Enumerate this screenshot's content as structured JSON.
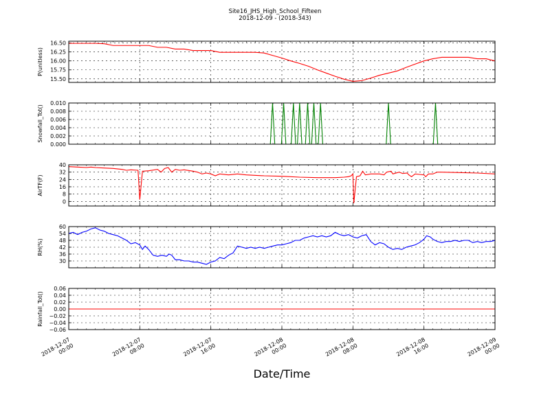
{
  "figure": {
    "title_line1": "Site16_JHS_High_School_Fifteen",
    "title_line2": "2018-12-09 - (2018-343)",
    "xlabel": "Date/Time"
  },
  "chart_data": {
    "type": "line",
    "x_axis": {
      "range": [
        "2018-12-07 00:00",
        "2018-12-09 00:00"
      ],
      "ticks": [
        {
          "line1": "2018-12-07",
          "line2": "00:00"
        },
        {
          "line1": "2018-12-07",
          "line2": "08:00"
        },
        {
          "line1": "2018-12-07",
          "line2": "16:00"
        },
        {
          "line1": "2018-12-08",
          "line2": "00:00"
        },
        {
          "line1": "2018-12-08",
          "line2": "08:00"
        },
        {
          "line1": "2018-12-08",
          "line2": "16:00"
        },
        {
          "line1": "2018-12-09",
          "line2": "00:00"
        }
      ]
    },
    "grid": true,
    "panels": [
      {
        "ylabel": "P(unitless)",
        "ylim": [
          15.4,
          16.55
        ],
        "yticks": [
          "16.50",
          "16.25",
          "16.00",
          "15.75",
          "15.50"
        ],
        "ytick_values": [
          16.5,
          16.25,
          16.0,
          15.75,
          15.5
        ],
        "color": "#ff0000",
        "points": [
          [
            0,
            16.49
          ],
          [
            1,
            16.49
          ],
          [
            2,
            16.49
          ],
          [
            3,
            16.49
          ],
          [
            4,
            16.48
          ],
          [
            5,
            16.43
          ],
          [
            6,
            16.43
          ],
          [
            7,
            16.43
          ],
          [
            8,
            16.43
          ],
          [
            9,
            16.43
          ],
          [
            10,
            16.38
          ],
          [
            11,
            16.38
          ],
          [
            12,
            16.33
          ],
          [
            13,
            16.33
          ],
          [
            14,
            16.29
          ],
          [
            15,
            16.29
          ],
          [
            16,
            16.29
          ],
          [
            17,
            16.24
          ],
          [
            18,
            16.24
          ],
          [
            19,
            16.24
          ],
          [
            20,
            16.24
          ],
          [
            21,
            16.24
          ],
          [
            22,
            16.22
          ],
          [
            23,
            16.15
          ],
          [
            24,
            16.08
          ],
          [
            25,
            16.0
          ],
          [
            26,
            15.93
          ],
          [
            27,
            15.85
          ],
          [
            28,
            15.75
          ],
          [
            29,
            15.66
          ],
          [
            30,
            15.57
          ],
          [
            31,
            15.49
          ],
          [
            32,
            15.43
          ],
          [
            33,
            15.45
          ],
          [
            34,
            15.52
          ],
          [
            35,
            15.6
          ],
          [
            36,
            15.66
          ],
          [
            37,
            15.72
          ],
          [
            38,
            15.82
          ],
          [
            39,
            15.91
          ],
          [
            40,
            16.0
          ],
          [
            41,
            16.06
          ],
          [
            42,
            16.1
          ],
          [
            43,
            16.1
          ],
          [
            44,
            16.1
          ],
          [
            45,
            16.1
          ],
          [
            46,
            16.06
          ],
          [
            47,
            16.06
          ],
          [
            48,
            16.0
          ]
        ]
      },
      {
        "ylabel": "Snowfall_Tot()",
        "ylim": [
          0,
          0.01
        ],
        "yticks": [
          "0.010",
          "0.008",
          "0.006",
          "0.004",
          "0.002",
          "0.000"
        ],
        "ytick_values": [
          0.01,
          0.008,
          0.006,
          0.004,
          0.002,
          0.0
        ],
        "color": "#008000",
        "points": [
          [
            0,
            0
          ],
          [
            22.7,
            0
          ],
          [
            22.95,
            0.01
          ],
          [
            23.2,
            0
          ],
          [
            23.95,
            0
          ],
          [
            24.2,
            0.01
          ],
          [
            24.45,
            0
          ],
          [
            25.05,
            0
          ],
          [
            25.3,
            0.01
          ],
          [
            25.55,
            0
          ],
          [
            25.75,
            0
          ],
          [
            26.0,
            0.01
          ],
          [
            26.25,
            0
          ],
          [
            26.65,
            0
          ],
          [
            26.9,
            0.01
          ],
          [
            27.15,
            0
          ],
          [
            27.35,
            0
          ],
          [
            27.6,
            0.01
          ],
          [
            27.85,
            0
          ],
          [
            28.1,
            0
          ],
          [
            28.35,
            0.01
          ],
          [
            28.6,
            0
          ],
          [
            35.75,
            0
          ],
          [
            36.0,
            0.01
          ],
          [
            36.25,
            0
          ],
          [
            41.05,
            0
          ],
          [
            41.3,
            0.01
          ],
          [
            41.55,
            0
          ],
          [
            48,
            0
          ]
        ]
      },
      {
        "ylabel": "AirTF(F)",
        "ylim": [
          -5,
          40
        ],
        "yticks": [
          "40",
          "32",
          "24",
          "16",
          "8",
          "0"
        ],
        "ytick_values": [
          40,
          32,
          24,
          16,
          8,
          0
        ],
        "color": "#ff0000",
        "points": [
          [
            0,
            38
          ],
          [
            1,
            37.5
          ],
          [
            2,
            37
          ],
          [
            2.5,
            37.5
          ],
          [
            3,
            37
          ],
          [
            4,
            36.5
          ],
          [
            5,
            36
          ],
          [
            6,
            35
          ],
          [
            6.5,
            34
          ],
          [
            7,
            34.5
          ],
          [
            7.8,
            34
          ],
          [
            8.0,
            2
          ],
          [
            8.3,
            33
          ],
          [
            9,
            33.5
          ],
          [
            10,
            35
          ],
          [
            10.4,
            32
          ],
          [
            10.8,
            36
          ],
          [
            11.2,
            37
          ],
          [
            11.6,
            32
          ],
          [
            12,
            35
          ],
          [
            12.5,
            34
          ],
          [
            13,
            34.5
          ],
          [
            14,
            33
          ],
          [
            14.5,
            32
          ],
          [
            15,
            30
          ],
          [
            15.5,
            31
          ],
          [
            16,
            30
          ],
          [
            16.5,
            28
          ],
          [
            17,
            30
          ],
          [
            18,
            29
          ],
          [
            19,
            30
          ],
          [
            20,
            29
          ],
          [
            22,
            28
          ],
          [
            24,
            27.5
          ],
          [
            26,
            26.5
          ],
          [
            28,
            26
          ],
          [
            30,
            26
          ],
          [
            31,
            26.5
          ],
          [
            31.5,
            27
          ],
          [
            31.8,
            28
          ],
          [
            32,
            30
          ],
          [
            32.1,
            -2
          ],
          [
            32.4,
            27
          ],
          [
            32.8,
            28
          ],
          [
            33.1,
            33
          ],
          [
            33.4,
            29
          ],
          [
            34,
            30
          ],
          [
            35,
            30
          ],
          [
            35.5,
            29
          ],
          [
            35.8,
            32
          ],
          [
            36.3,
            33
          ],
          [
            36.5,
            30
          ],
          [
            37.2,
            32
          ],
          [
            37.6,
            30.5
          ],
          [
            38.1,
            31
          ],
          [
            38.3,
            29
          ],
          [
            38.6,
            27
          ],
          [
            39,
            30
          ],
          [
            39.5,
            29.5
          ],
          [
            40,
            29
          ],
          [
            40.2,
            27
          ],
          [
            40.5,
            30
          ],
          [
            41,
            30
          ],
          [
            41.5,
            32
          ],
          [
            42,
            32
          ],
          [
            44,
            31.5
          ],
          [
            46,
            31
          ],
          [
            48,
            30
          ]
        ]
      },
      {
        "ylabel": "RH(%)",
        "ylim": [
          24,
          60
        ],
        "yticks": [
          "60",
          "54",
          "48",
          "42",
          "36",
          "30"
        ],
        "ytick_values": [
          60,
          54,
          48,
          42,
          36,
          30
        ],
        "color": "#0000ff",
        "points": [
          [
            0,
            54
          ],
          [
            0.5,
            55
          ],
          [
            1,
            53
          ],
          [
            1.5,
            55
          ],
          [
            2,
            56
          ],
          [
            2.5,
            58
          ],
          [
            3,
            59
          ],
          [
            3.5,
            57
          ],
          [
            4,
            56
          ],
          [
            4.5,
            54
          ],
          [
            5,
            53
          ],
          [
            5.5,
            52
          ],
          [
            6,
            50
          ],
          [
            6.5,
            48
          ],
          [
            7,
            45
          ],
          [
            7.5,
            46
          ],
          [
            8,
            44
          ],
          [
            8.3,
            40
          ],
          [
            8.6,
            43
          ],
          [
            9,
            40
          ],
          [
            9.5,
            35
          ],
          [
            10,
            34
          ],
          [
            10.5,
            35
          ],
          [
            11,
            34
          ],
          [
            11.3,
            36
          ],
          [
            11.6,
            35
          ],
          [
            12,
            31
          ],
          [
            12.5,
            31
          ],
          [
            13,
            30
          ],
          [
            13.5,
            30
          ],
          [
            14,
            29
          ],
          [
            14.5,
            29
          ],
          [
            15,
            28
          ],
          [
            15.5,
            27
          ],
          [
            16,
            29
          ],
          [
            16.5,
            30
          ],
          [
            17,
            33
          ],
          [
            17.5,
            32
          ],
          [
            18,
            35
          ],
          [
            18.5,
            37
          ],
          [
            19,
            43
          ],
          [
            19.5,
            42
          ],
          [
            20,
            41
          ],
          [
            20.5,
            42
          ],
          [
            21,
            41
          ],
          [
            21.5,
            42
          ],
          [
            22,
            41
          ],
          [
            22.5,
            42
          ],
          [
            23,
            43
          ],
          [
            23.5,
            44
          ],
          [
            24,
            44
          ],
          [
            24.5,
            45
          ],
          [
            25,
            46
          ],
          [
            25.5,
            48
          ],
          [
            26,
            48
          ],
          [
            26.5,
            50
          ],
          [
            27,
            51
          ],
          [
            27.5,
            52
          ],
          [
            28,
            51
          ],
          [
            28.5,
            52
          ],
          [
            29,
            51
          ],
          [
            29.5,
            52
          ],
          [
            30,
            55
          ],
          [
            30.5,
            53
          ],
          [
            31,
            52
          ],
          [
            31.5,
            53
          ],
          [
            32,
            51
          ],
          [
            32.5,
            50
          ],
          [
            33,
            52
          ],
          [
            33.5,
            53
          ],
          [
            34,
            47
          ],
          [
            34.5,
            44
          ],
          [
            35,
            46
          ],
          [
            35.5,
            45
          ],
          [
            36,
            42
          ],
          [
            36.5,
            40
          ],
          [
            37,
            41
          ],
          [
            37.5,
            40
          ],
          [
            38,
            42
          ],
          [
            38.5,
            43
          ],
          [
            39,
            44
          ],
          [
            39.5,
            46
          ],
          [
            40,
            49
          ],
          [
            40.3,
            52
          ],
          [
            40.7,
            51
          ],
          [
            41,
            49
          ],
          [
            41.5,
            47
          ],
          [
            42,
            46
          ],
          [
            42.5,
            47
          ],
          [
            43,
            47
          ],
          [
            43.5,
            48
          ],
          [
            44,
            47
          ],
          [
            44.5,
            48
          ],
          [
            45,
            48
          ],
          [
            45.5,
            46
          ],
          [
            46,
            47
          ],
          [
            46.5,
            46
          ],
          [
            47,
            47
          ],
          [
            47.5,
            47
          ],
          [
            48,
            48
          ]
        ]
      },
      {
        "ylabel": "Rainfall_Tot()",
        "ylim": [
          -0.06,
          0.06
        ],
        "yticks": [
          "0.06",
          "0.04",
          "0.02",
          "0.00",
          "−0.02",
          "−0.04",
          "−0.06"
        ],
        "ytick_values": [
          0.06,
          0.04,
          0.02,
          0.0,
          -0.02,
          -0.04,
          -0.06
        ],
        "color": "#ff0000",
        "points": [
          [
            0,
            0
          ],
          [
            48,
            0
          ]
        ]
      }
    ]
  }
}
